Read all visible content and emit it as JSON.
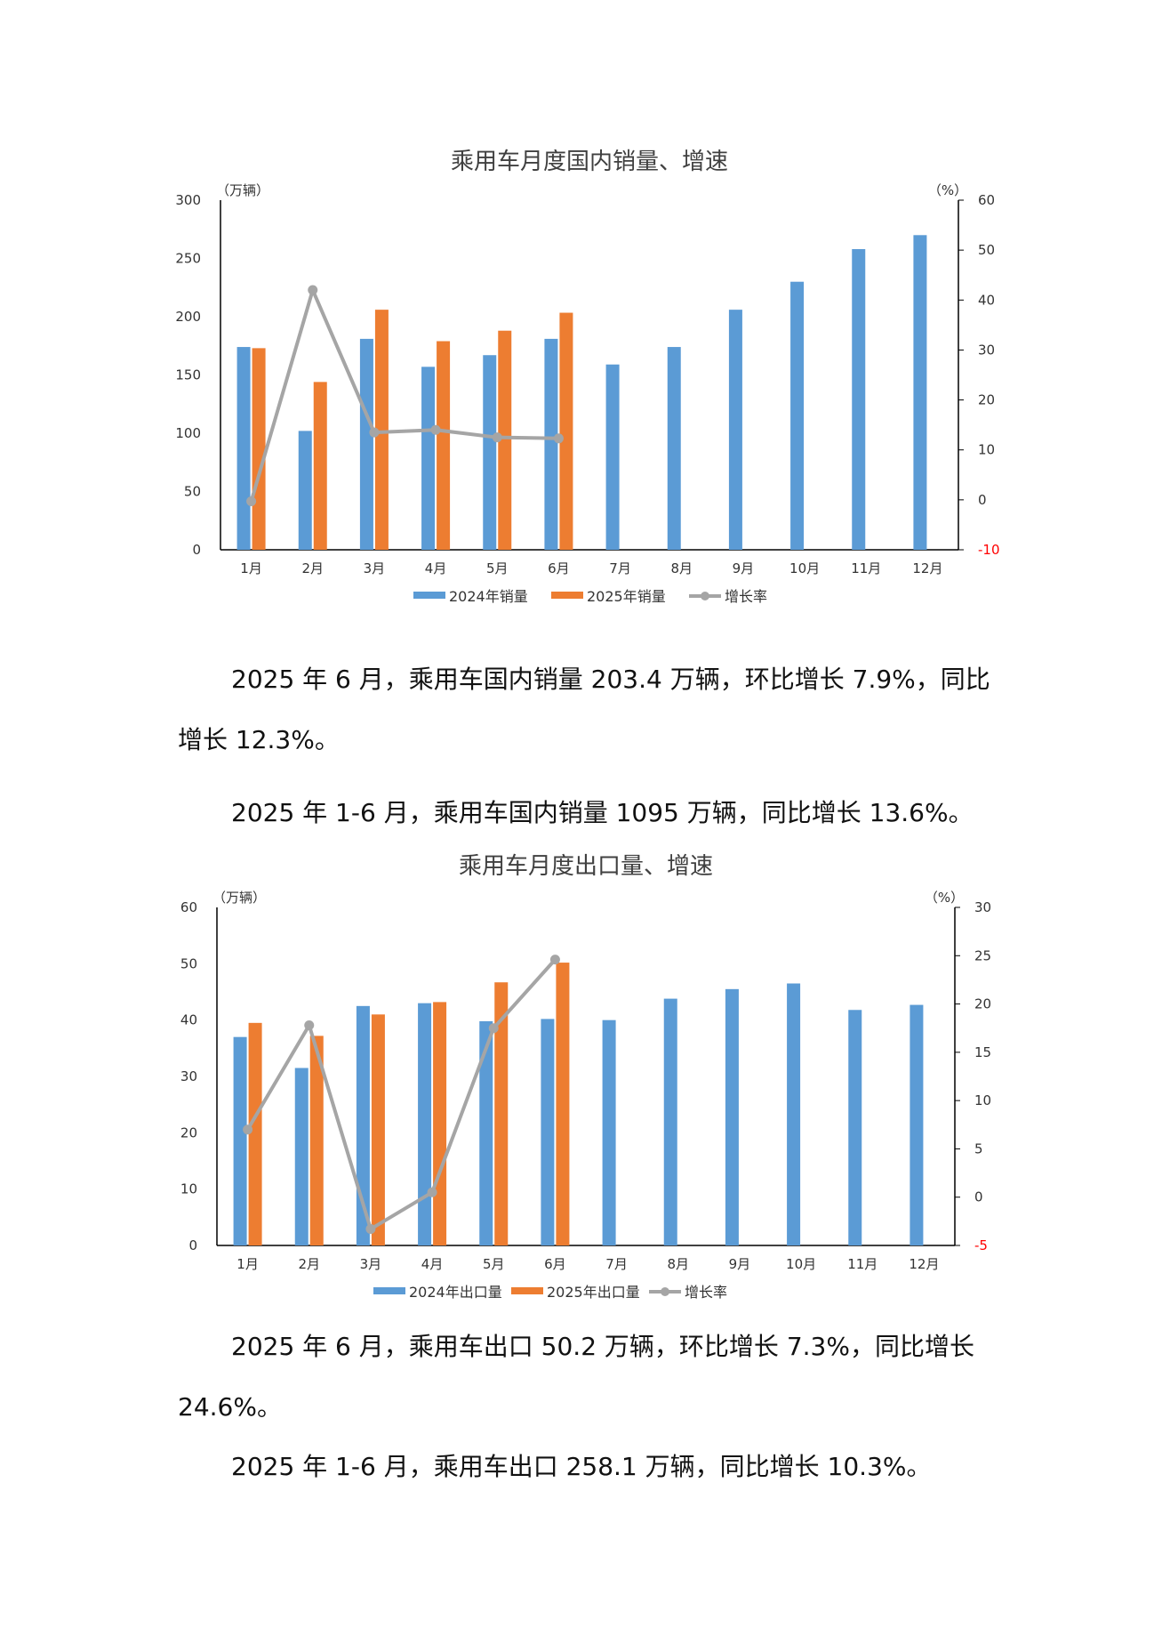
{
  "chart_data": [
    {
      "type": "bar",
      "title": "乘用车月度国内销量、增速",
      "y_left_unit": "（万辆）",
      "y_right_unit": "（%）",
      "categories": [
        "1月",
        "2月",
        "3月",
        "4月",
        "5月",
        "6月",
        "7月",
        "8月",
        "9月",
        "10月",
        "11月",
        "12月"
      ],
      "ylim_left": [
        0,
        300
      ],
      "yticks_left": [
        "0",
        "50",
        "100",
        "150",
        "200",
        "250",
        "300"
      ],
      "ylim_right": [
        -10,
        60
      ],
      "yticks_right": [
        "-10",
        "0",
        "10",
        "20",
        "30",
        "40",
        "50",
        "60"
      ],
      "series": [
        {
          "name": "2024年销量",
          "kind": "bar",
          "color": "#5b9bd5",
          "values": [
            174,
            102,
            181,
            157,
            167,
            181,
            159,
            174,
            206,
            230,
            258,
            270
          ]
        },
        {
          "name": "2025年销量",
          "kind": "bar",
          "color": "#ed7d31",
          "values": [
            173,
            144,
            206,
            179,
            188,
            203.4,
            null,
            null,
            null,
            null,
            null,
            null
          ]
        },
        {
          "name": "增长率",
          "kind": "line",
          "axis": "right",
          "color": "#a5a5a5",
          "values": [
            -0.3,
            42,
            13.5,
            14,
            12.5,
            12.3,
            null,
            null,
            null,
            null,
            null,
            null
          ]
        }
      ],
      "legend_position": "bottom"
    },
    {
      "type": "bar",
      "title": "乘用车月度出口量、增速",
      "y_left_unit": "（万辆）",
      "y_right_unit": "（%）",
      "categories": [
        "1月",
        "2月",
        "3月",
        "4月",
        "5月",
        "6月",
        "7月",
        "8月",
        "9月",
        "10月",
        "11月",
        "12月"
      ],
      "ylim_left": [
        0,
        60
      ],
      "yticks_left": [
        "0",
        "10",
        "20",
        "30",
        "40",
        "50",
        "60"
      ],
      "ylim_right": [
        -5,
        30
      ],
      "yticks_right": [
        "-5",
        "0",
        "5",
        "10",
        "15",
        "20",
        "25",
        "30"
      ],
      "series": [
        {
          "name": "2024年出口量",
          "kind": "bar",
          "color": "#5b9bd5",
          "values": [
            37,
            31.5,
            42.5,
            43,
            39.8,
            40.2,
            40,
            43.8,
            45.5,
            46.5,
            41.8,
            42.7
          ]
        },
        {
          "name": "2025年出口量",
          "kind": "bar",
          "color": "#ed7d31",
          "values": [
            39.5,
            37.2,
            41,
            43.2,
            46.7,
            50.2,
            null,
            null,
            null,
            null,
            null,
            null
          ]
        },
        {
          "name": "增长率",
          "kind": "line",
          "axis": "right",
          "color": "#a5a5a5",
          "values": [
            7,
            17.8,
            -3.3,
            0.5,
            17.5,
            24.6,
            null,
            null,
            null,
            null,
            null,
            null
          ]
        }
      ],
      "legend_position": "bottom"
    }
  ],
  "text": {
    "p1": "2025 年 6 月，乘用车国内销量 203.4 万辆，环比增长 7.9%，同比增长 12.3%。",
    "p2": "2025 年 1-6 月，乘用车国内销量 1095 万辆，同比增长 13.6%。",
    "p3": "2025 年 6 月，乘用车出口 50.2 万辆，环比增长 7.3%，同比增长 24.6%。",
    "p4": "2025 年 1-6 月，乘用车出口 258.1 万辆，同比增长 10.3%。"
  },
  "colors": {
    "negative_tick": "#ff0000",
    "axis": "#000000",
    "tick_text": "#333333"
  }
}
